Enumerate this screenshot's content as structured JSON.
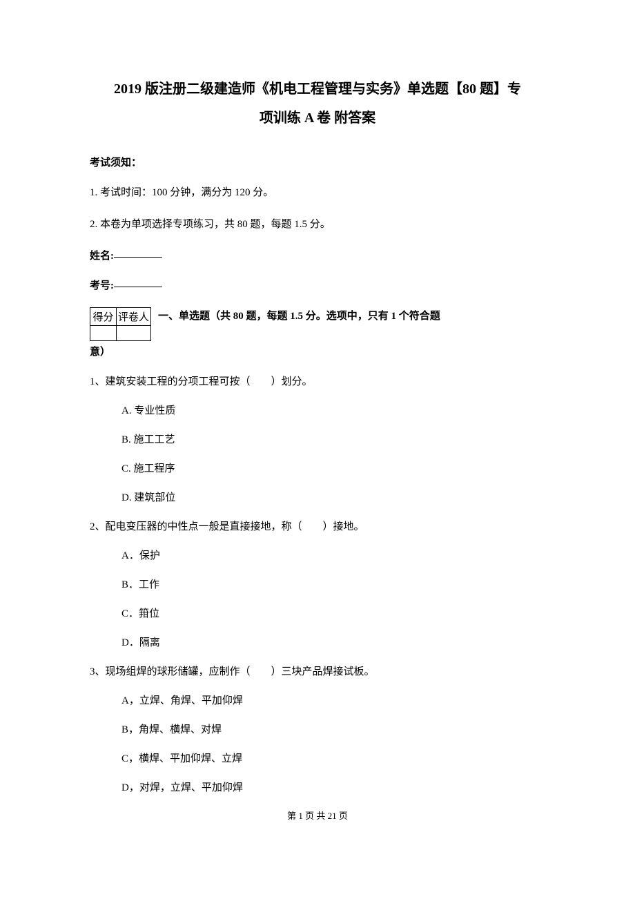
{
  "title_line1": "2019 版注册二级建造师《机电工程管理与实务》单选题【80 题】专",
  "title_line2": "项训练 A 卷 附答案",
  "exam_notice_heading": "考试须知：",
  "instructions": [
    "1. 考试时间：100 分钟，满分为 120 分。",
    "2. 本卷为单项选择专项练习，共 80 题，每题 1.5 分。"
  ],
  "name_label": "姓名:",
  "id_label": "考号:",
  "score_table": {
    "header1": "得分",
    "header2": "评卷人"
  },
  "section_one_heading": "一、单选题（共 80 题，每题 1.5 分。选项中，只有 1 个符合题",
  "section_one_tail": "意）",
  "questions": [
    {
      "stem": "1、建筑安装工程的分项工程可按（　　）划分。",
      "options": [
        "A. 专业性质",
        "B. 施工工艺",
        "C. 施工程序",
        "D. 建筑部位"
      ]
    },
    {
      "stem": "2、配电变压器的中性点一般是直接接地，称（　　）接地。",
      "options": [
        "A．保护",
        "B．工作",
        "C．箝位",
        "D．隔离"
      ]
    },
    {
      "stem": "3、现场组焊的球形储罐，应制作（　　）三块产品焊接试板。",
      "options": [
        "A，立焊、角焊、平加仰焊",
        "B，角焊、横焊、对焊",
        "C，横焊、平加仰焊、立焊",
        "D，对焊，立焊、平加仰焊"
      ]
    }
  ],
  "footer": "第 1 页 共 21 页"
}
